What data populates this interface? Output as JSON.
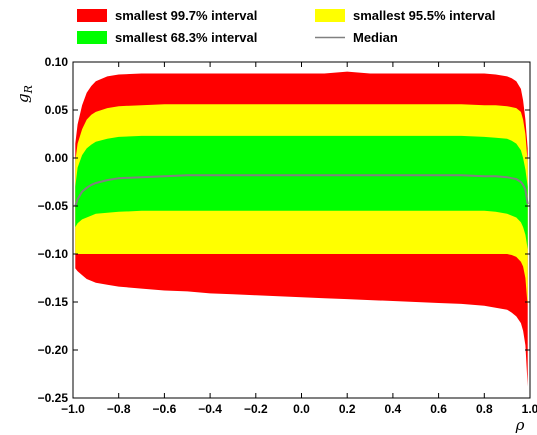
{
  "chart_data": {
    "type": "area",
    "xlabel": "ρ",
    "ylabel": "g_R",
    "ylabel_main": "g",
    "ylabel_sub": "R",
    "xlim": [
      -1.0,
      1.0
    ],
    "ylim": [
      -0.25,
      0.1
    ],
    "x_ticks": [
      -1.0,
      -0.8,
      -0.6,
      -0.4,
      -0.2,
      0.0,
      0.2,
      0.4,
      0.6,
      0.8,
      1.0
    ],
    "x_tick_labels": [
      "−1.0",
      "−0.8",
      "−0.6",
      "−0.4",
      "−0.2",
      "0.0",
      "0.2",
      "0.4",
      "0.6",
      "0.8",
      "1.0"
    ],
    "y_ticks": [
      0.1,
      0.05,
      0.0,
      -0.05,
      -0.1,
      -0.15,
      -0.2,
      -0.25
    ],
    "y_tick_labels": [
      "0.10",
      "0.05",
      "0.00",
      "−0.05",
      "−0.10",
      "−0.15",
      "−0.20",
      "−0.25"
    ],
    "legend_placement": "top",
    "legend": [
      {
        "label": "smallest 99.7% interval",
        "color": "#ff0000",
        "kind": "box"
      },
      {
        "label": "smallest 95.5% interval",
        "color": "#ffff00",
        "kind": "box"
      },
      {
        "label": "smallest 68.3% interval",
        "color": "#00ff00",
        "kind": "box"
      },
      {
        "label": "Median",
        "color": "#808080",
        "kind": "line"
      }
    ],
    "x": [
      -0.99,
      -0.98,
      -0.96,
      -0.94,
      -0.92,
      -0.9,
      -0.85,
      -0.8,
      -0.7,
      -0.6,
      -0.5,
      -0.4,
      -0.3,
      -0.2,
      -0.1,
      0.0,
      0.1,
      0.2,
      0.3,
      0.4,
      0.5,
      0.6,
      0.7,
      0.8,
      0.85,
      0.9,
      0.92,
      0.94,
      0.96,
      0.97,
      0.98,
      0.99
    ],
    "series": [
      {
        "name": "smallest 99.7% interval",
        "color": "#ff0000",
        "upper": [
          0.015,
          0.035,
          0.055,
          0.068,
          0.075,
          0.08,
          0.085,
          0.087,
          0.088,
          0.088,
          0.088,
          0.088,
          0.088,
          0.088,
          0.088,
          0.088,
          0.088,
          0.09,
          0.088,
          0.088,
          0.088,
          0.088,
          0.088,
          0.088,
          0.087,
          0.085,
          0.083,
          0.08,
          0.072,
          0.06,
          0.04,
          0.01
        ],
        "lower": [
          -0.115,
          -0.118,
          -0.122,
          -0.126,
          -0.128,
          -0.13,
          -0.132,
          -0.134,
          -0.136,
          -0.138,
          -0.139,
          -0.141,
          -0.142,
          -0.143,
          -0.144,
          -0.145,
          -0.146,
          -0.147,
          -0.148,
          -0.149,
          -0.15,
          -0.151,
          -0.152,
          -0.154,
          -0.156,
          -0.158,
          -0.161,
          -0.165,
          -0.172,
          -0.18,
          -0.195,
          -0.238
        ]
      },
      {
        "name": "smallest 95.5% interval",
        "color": "#ffff00",
        "upper": [
          -0.003,
          0.015,
          0.03,
          0.04,
          0.045,
          0.048,
          0.052,
          0.054,
          0.055,
          0.056,
          0.056,
          0.056,
          0.056,
          0.056,
          0.056,
          0.056,
          0.056,
          0.056,
          0.056,
          0.056,
          0.056,
          0.056,
          0.056,
          0.055,
          0.055,
          0.054,
          0.053,
          0.052,
          0.048,
          0.04,
          0.025,
          -0.005
        ],
        "lower": [
          -0.1,
          -0.1,
          -0.1,
          -0.1,
          -0.1,
          -0.1,
          -0.1,
          -0.1,
          -0.1,
          -0.1,
          -0.1,
          -0.1,
          -0.1,
          -0.1,
          -0.1,
          -0.1,
          -0.1,
          -0.1,
          -0.1,
          -0.1,
          -0.1,
          -0.1,
          -0.1,
          -0.1,
          -0.1,
          -0.1,
          -0.101,
          -0.103,
          -0.108,
          -0.113,
          -0.125,
          -0.155
        ]
      },
      {
        "name": "smallest 68.3% interval",
        "color": "#00ff00",
        "upper": [
          -0.03,
          -0.01,
          0.003,
          0.01,
          0.014,
          0.017,
          0.02,
          0.022,
          0.023,
          0.023,
          0.023,
          0.023,
          0.023,
          0.023,
          0.023,
          0.023,
          0.023,
          0.023,
          0.023,
          0.023,
          0.023,
          0.023,
          0.023,
          0.022,
          0.021,
          0.02,
          0.018,
          0.015,
          0.008,
          0.0,
          -0.012,
          -0.03
        ],
        "lower": [
          -0.072,
          -0.068,
          -0.064,
          -0.062,
          -0.06,
          -0.058,
          -0.057,
          -0.056,
          -0.055,
          -0.055,
          -0.055,
          -0.055,
          -0.055,
          -0.055,
          -0.055,
          -0.055,
          -0.055,
          -0.055,
          -0.055,
          -0.055,
          -0.055,
          -0.055,
          -0.055,
          -0.055,
          -0.056,
          -0.058,
          -0.06,
          -0.062,
          -0.067,
          -0.072,
          -0.08,
          -0.095
        ]
      }
    ],
    "median": {
      "name": "Median",
      "color": "#808080",
      "values": [
        -0.05,
        -0.043,
        -0.035,
        -0.031,
        -0.028,
        -0.026,
        -0.023,
        -0.021,
        -0.02,
        -0.019,
        -0.018,
        -0.018,
        -0.018,
        -0.018,
        -0.018,
        -0.018,
        -0.018,
        -0.018,
        -0.018,
        -0.018,
        -0.018,
        -0.018,
        -0.018,
        -0.019,
        -0.019,
        -0.02,
        -0.021,
        -0.022,
        -0.025,
        -0.028,
        -0.033,
        -0.048
      ]
    }
  }
}
